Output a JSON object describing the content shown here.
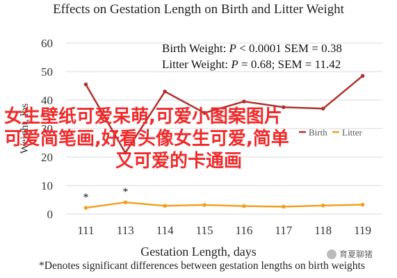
{
  "chart_data": {
    "type": "line",
    "title": "Effects on Gestation Length on Birth and Litter Weight",
    "xlabel": "Gestation Length, days",
    "ylabel": "Weight, lbs",
    "categories": [
      "111",
      "113",
      "114",
      "115",
      "116",
      "117",
      "118",
      "119"
    ],
    "ylim": [
      0,
      60
    ],
    "yticks": [
      0,
      10,
      20,
      30,
      40,
      50,
      60
    ],
    "grid": true,
    "legend_position": "top-right",
    "series": [
      {
        "name": "Birth",
        "color": "#b0302e",
        "values": [
          45.5,
          21.5,
          43,
          35.5,
          39.5,
          37.5,
          37,
          48.5
        ]
      },
      {
        "name": "Litter",
        "color": "#f0a020",
        "values": [
          2.2,
          4.1,
          2.9,
          3.2,
          2.8,
          2.6,
          3.0,
          3.3
        ]
      }
    ],
    "annotations": {
      "asterisk": "*",
      "asterisk_categories": [
        "111",
        "113"
      ],
      "birth_stat_label": "Birth Weight: ",
      "birth_stat_p": "P",
      "birth_stat_rest": " < 0.0001 SEM = 0.38",
      "litter_stat_label": "Litter Weight: ",
      "litter_stat_p": "P",
      "litter_stat_rest": " = 0.68; SEM = 11.42"
    },
    "footnote": "*Denotes significant differences between gestation lengths on birth weights"
  },
  "overlay_text": {
    "line1": "女生壁纸可爱呆萌,可爱小图案图片",
    "line2": "可爱简笔画,好看头像女生可爱,简单",
    "line3": "又可爱的卡通画"
  },
  "watermark": {
    "text": "育夏聊猪"
  }
}
